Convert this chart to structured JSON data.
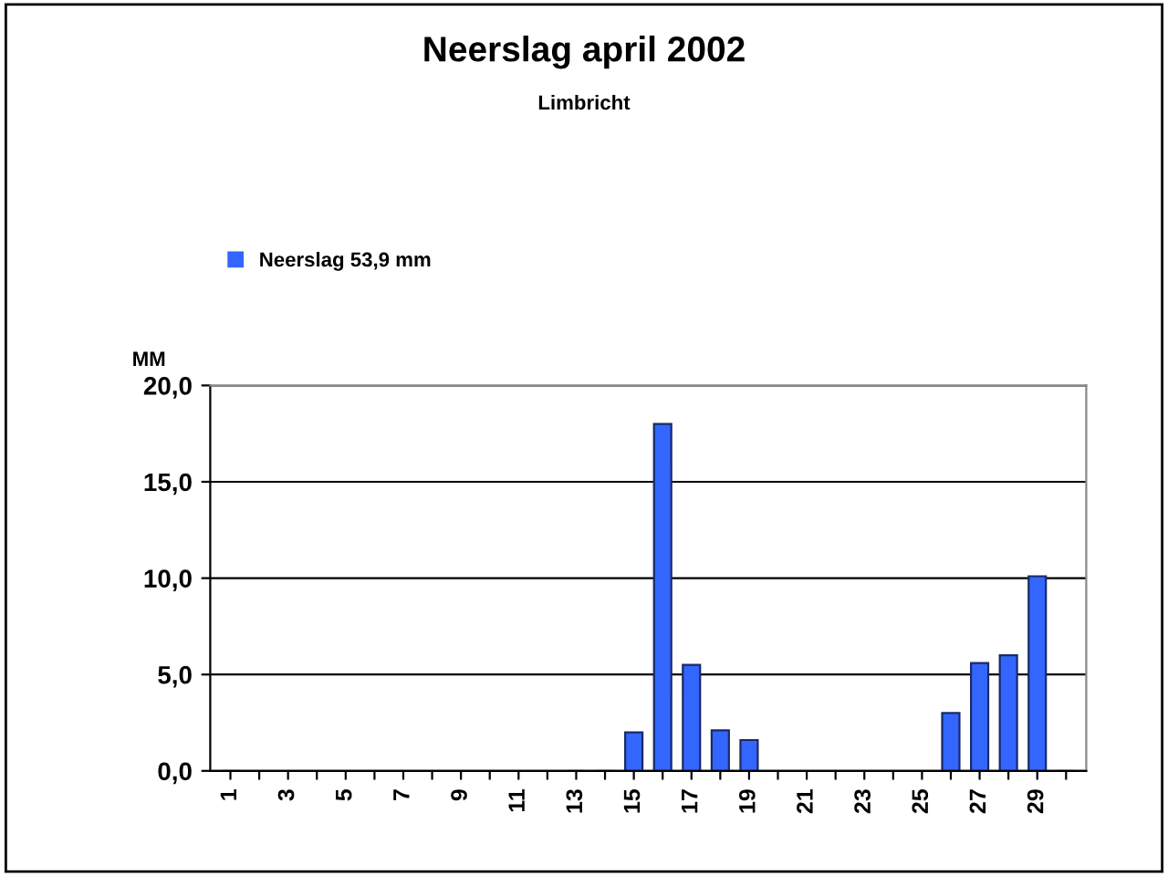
{
  "chart_data": {
    "type": "bar",
    "title": "Neerslag april 2002",
    "subtitle": "Limbricht",
    "ylabel": "MM",
    "categories": [
      "1",
      null,
      "3",
      null,
      "5",
      null,
      "7",
      null,
      "9",
      null,
      "11",
      null,
      "13",
      null,
      "15",
      null,
      "17",
      null,
      "19",
      null,
      "21",
      null,
      "23",
      null,
      "25",
      null,
      "27",
      null,
      "29",
      null
    ],
    "series": [
      {
        "name": "Neerslag 53,9 mm",
        "color": "#3366ff",
        "values": [
          0,
          null,
          null,
          null,
          null,
          null,
          null,
          null,
          null,
          null,
          null,
          null,
          0,
          0,
          2.0,
          18.0,
          5.5,
          2.1,
          1.6,
          null,
          null,
          null,
          null,
          null,
          null,
          3.0,
          5.6,
          6.0,
          10.1,
          0
        ]
      }
    ],
    "ylim": [
      0,
      20
    ],
    "yticks": [
      {
        "value": 0,
        "label": "0,0"
      },
      {
        "value": 5,
        "label": "5,0"
      },
      {
        "value": 10,
        "label": "10,0"
      },
      {
        "value": 15,
        "label": "15,0"
      },
      {
        "value": 20,
        "label": "20,0"
      }
    ],
    "grid": "y",
    "legend": "top left"
  }
}
